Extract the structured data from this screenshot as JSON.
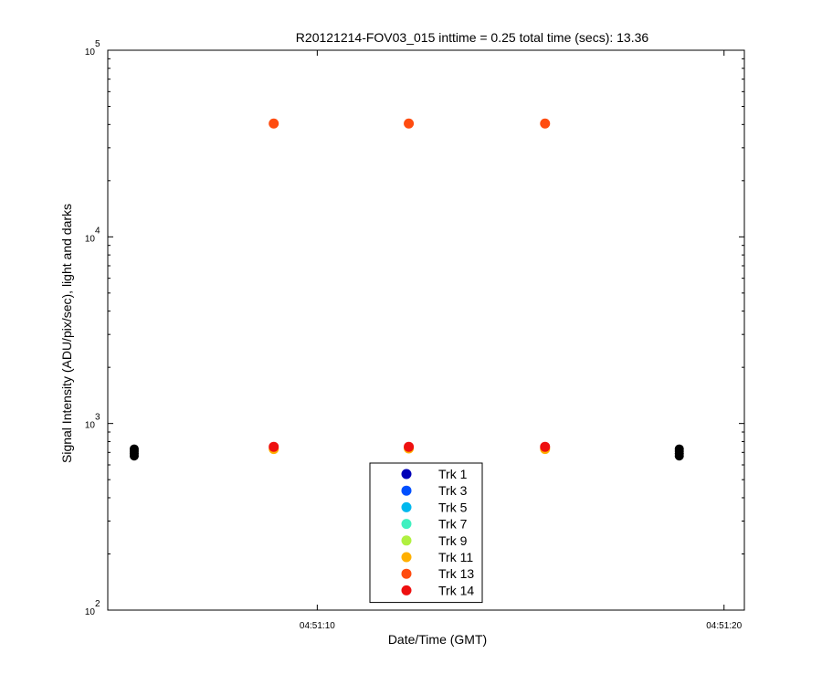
{
  "chart_data": {
    "type": "scatter",
    "title": "R20121214-FOV03_015 inttime = 0.25 total time (secs): 13.36",
    "xlabel": "Date/Time (GMT)",
    "ylabel": "Signal Intensity (ADU/pix/sec), light and darks",
    "y_scale": "log",
    "ylim": [
      100,
      100000
    ],
    "xlim": [
      "04:51:04.85",
      "04:51:20.50"
    ],
    "x_ticks": [
      "04:51:10",
      "04:51:20"
    ],
    "y_ticks": [
      {
        "base": "10",
        "exp": "2",
        "value": 100
      },
      {
        "base": "10",
        "exp": "3",
        "value": 1000
      },
      {
        "base": "10",
        "exp": "4",
        "value": 10000
      },
      {
        "base": "10",
        "exp": "5",
        "value": 100000
      }
    ],
    "grid": false,
    "legend_position": "bottom-center",
    "series": [
      {
        "name": "Trk 1",
        "color": "#0000b8",
        "points": []
      },
      {
        "name": "Trk 3",
        "color": "#0050ff",
        "points": []
      },
      {
        "name": "Trk 5",
        "color": "#00b8ee",
        "points": []
      },
      {
        "name": "Trk 7",
        "color": "#40f0c0",
        "points": []
      },
      {
        "name": "Trk 9",
        "color": "#b0f040",
        "points": []
      },
      {
        "name": "Trk 11",
        "color": "#ffb000",
        "points": [
          [
            "04:51:08.93",
            730
          ],
          [
            "04:51:12.25",
            735
          ],
          [
            "04:51:15.60",
            730
          ]
        ]
      },
      {
        "name": "Trk 13",
        "color": "#ff4c10",
        "points": [
          [
            "04:51:08.93",
            40500
          ],
          [
            "04:51:12.25",
            40500
          ],
          [
            "04:51:15.60",
            40500
          ]
        ]
      },
      {
        "name": "Trk 14",
        "color": "#ee1010",
        "points": [
          [
            "04:51:08.93",
            750
          ],
          [
            "04:51:12.25",
            750
          ],
          [
            "04:51:15.60",
            750
          ]
        ]
      }
    ],
    "darks": {
      "color": "#000000",
      "points": [
        [
          "04:51:05.50",
          670
        ],
        [
          "04:51:05.50",
          690
        ],
        [
          "04:51:05.50",
          710
        ],
        [
          "04:51:05.50",
          730
        ],
        [
          "04:51:18.90",
          670
        ],
        [
          "04:51:18.90",
          690
        ],
        [
          "04:51:18.90",
          710
        ],
        [
          "04:51:18.90",
          730
        ]
      ]
    }
  }
}
